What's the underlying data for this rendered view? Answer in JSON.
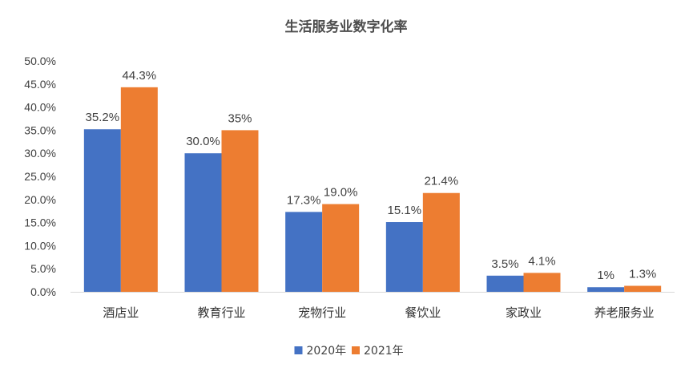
{
  "chart_data": {
    "type": "bar",
    "title": "生活服务业数字化率",
    "categories": [
      "酒店业",
      "教育行业",
      "宠物行业",
      "餐饮业",
      "家政业",
      "养老服务业"
    ],
    "series": [
      {
        "name": "2020年",
        "values": [
          35.2,
          30.0,
          17.3,
          15.1,
          3.5,
          1.0
        ],
        "labels": [
          "35.2%",
          "30.0%",
          "17.3%",
          "15.1%",
          "3.5%",
          "1%"
        ],
        "color": "#4472C4"
      },
      {
        "name": "2021年",
        "values": [
          44.3,
          35.0,
          19.0,
          21.4,
          4.1,
          1.3
        ],
        "labels": [
          "44.3%",
          "35%",
          "19.0%",
          "21.4%",
          "4.1%",
          "1.3%"
        ],
        "color": "#ED7D31"
      }
    ],
    "ylim": [
      0,
      50
    ],
    "yticks": [
      0,
      5,
      10,
      15,
      20,
      25,
      30,
      35,
      40,
      45,
      50
    ],
    "ytick_labels": [
      "0.0%",
      "5.0%",
      "10.0%",
      "15.0%",
      "20.0%",
      "25.0%",
      "30.0%",
      "35.0%",
      "40.0%",
      "45.0%",
      "50.0%"
    ],
    "xlabel": "",
    "ylabel": "",
    "grid": false,
    "legend_position": "bottom"
  }
}
